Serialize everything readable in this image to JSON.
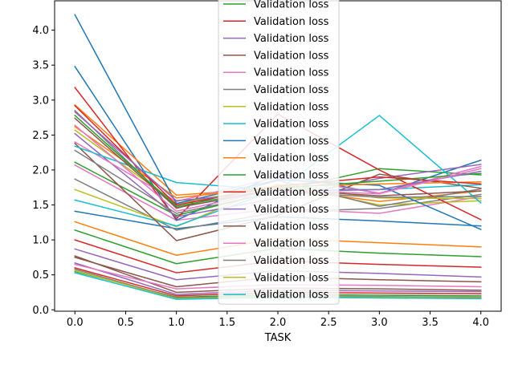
{
  "chart_data": {
    "type": "line",
    "title": "",
    "xlabel": "TASK",
    "ylabel": "",
    "x": [
      0,
      1,
      2,
      3,
      4
    ],
    "xlim": [
      -0.2,
      4.2
    ],
    "ylim": [
      -0.02,
      4.42
    ],
    "xticks": [
      "0.0",
      "0.5",
      "1.0",
      "1.5",
      "2.0",
      "2.5",
      "3.0",
      "3.5",
      "4.0"
    ],
    "yticks": [
      "0.0",
      "0.5",
      "1.0",
      "1.5",
      "2.0",
      "2.5",
      "3.0",
      "3.5",
      "4.0"
    ],
    "grid": false,
    "legend_position": "top-center",
    "series": [
      {
        "name": "Validation loss",
        "color": "#2ca02c",
        "values": [
          0.55,
          0.18,
          0.22,
          0.21,
          0.2
        ]
      },
      {
        "name": "Validation loss",
        "color": "#d62728",
        "values": [
          0.6,
          0.2,
          0.25,
          0.24,
          0.23
        ]
      },
      {
        "name": "Validation loss",
        "color": "#9467bd",
        "values": [
          0.67,
          0.22,
          0.28,
          0.27,
          0.26
        ]
      },
      {
        "name": "Validation loss",
        "color": "#8c564b",
        "values": [
          0.77,
          0.25,
          0.31,
          0.3,
          0.28
        ]
      },
      {
        "name": "Validation loss",
        "color": "#e377c2",
        "values": [
          0.65,
          0.3,
          0.36,
          0.35,
          0.33
        ]
      },
      {
        "name": "Validation loss",
        "color": "#7f7f7f",
        "values": [
          0.58,
          0.17,
          0.2,
          0.19,
          0.18
        ]
      },
      {
        "name": "Validation loss",
        "color": "#bcbd22",
        "values": [
          0.56,
          0.16,
          0.19,
          0.18,
          0.17
        ]
      },
      {
        "name": "Validation loss",
        "color": "#17becf",
        "values": [
          0.53,
          0.15,
          0.18,
          0.17,
          0.16
        ]
      },
      {
        "name": "Validation loss",
        "color": "#1f77b4",
        "values": [
          1.41,
          1.16,
          1.33,
          1.27,
          1.2
        ]
      },
      {
        "name": "Validation loss",
        "color": "#ff7f0e",
        "values": [
          1.26,
          0.78,
          1.02,
          0.96,
          0.9
        ]
      },
      {
        "name": "Validation loss",
        "color": "#2ca02c",
        "values": [
          1.14,
          0.66,
          0.88,
          0.81,
          0.76
        ]
      },
      {
        "name": "Validation loss",
        "color": "#d62728",
        "values": [
          1.0,
          0.53,
          0.7,
          0.65,
          0.61
        ]
      },
      {
        "name": "Validation loss",
        "color": "#9467bd",
        "values": [
          0.87,
          0.43,
          0.56,
          0.52,
          0.47
        ]
      },
      {
        "name": "Validation loss",
        "color": "#8c564b",
        "values": [
          0.75,
          0.33,
          0.47,
          0.43,
          0.4
        ]
      },
      {
        "name": "Validation loss",
        "color": "#e377c2",
        "values": [
          2.07,
          1.28,
          1.45,
          1.38,
          1.62
        ]
      },
      {
        "name": "Validation loss",
        "color": "#7f7f7f",
        "values": [
          1.87,
          1.14,
          1.4,
          1.45,
          1.65
        ]
      },
      {
        "name": "Validation loss",
        "color": "#bcbd22",
        "values": [
          1.72,
          1.19,
          1.8,
          1.5,
          1.56
        ]
      },
      {
        "name": "Validation loss",
        "color": "#17becf",
        "values": [
          1.57,
          1.2,
          1.72,
          1.72,
          1.79
        ]
      },
      {
        "name": "Validation loss",
        "color": "#1f77b4",
        "values": [
          3.48,
          1.28,
          1.95,
          1.66,
          2.14
        ]
      },
      {
        "name": "Validation loss",
        "color": "#ff7f0e",
        "values": [
          2.93,
          1.64,
          1.74,
          1.55,
          1.7
        ]
      },
      {
        "name": "Validation loss",
        "color": "#2ca02c",
        "values": [
          2.11,
          1.35,
          1.7,
          2.02,
          1.93
        ]
      },
      {
        "name": "Validation loss",
        "color": "#d62728",
        "values": [
          3.18,
          1.3,
          2.8,
          2.0,
          1.29
        ]
      },
      {
        "name": "Validation loss",
        "color": "#9467bd",
        "values": [
          2.52,
          1.33,
          1.6,
          1.88,
          2.08
        ]
      },
      {
        "name": "Validation loss",
        "color": "#8c564b",
        "values": [
          2.38,
          0.99,
          1.35,
          1.94,
          1.74
        ]
      },
      {
        "name": "Validation loss",
        "color": "#e377c2",
        "values": [
          2.4,
          1.55,
          1.9,
          1.67,
          2.05
        ]
      },
      {
        "name": "Validation loss",
        "color": "#7f7f7f",
        "values": [
          2.85,
          1.45,
          1.85,
          1.48,
          1.73
        ]
      },
      {
        "name": "Validation loss",
        "color": "#bcbd22",
        "values": [
          2.57,
          1.52,
          1.78,
          1.6,
          1.59
        ]
      },
      {
        "name": "Validation loss",
        "color": "#17becf",
        "values": [
          2.34,
          1.82,
          1.71,
          2.78,
          1.53
        ]
      },
      {
        "name": "Validation loss",
        "color": "#1f77b4",
        "values": [
          4.22,
          1.52,
          1.86,
          1.78,
          1.15
        ]
      },
      {
        "name": "Validation loss",
        "color": "#ff7f0e",
        "values": [
          2.62,
          1.6,
          1.76,
          1.8,
          1.83
        ]
      },
      {
        "name": "Validation loss",
        "color": "#2ca02c",
        "values": [
          2.78,
          1.48,
          1.74,
          1.84,
          1.95
        ]
      },
      {
        "name": "Validation loss",
        "color": "#d62728",
        "values": [
          2.92,
          1.5,
          1.77,
          1.9,
          1.8
        ]
      },
      {
        "name": "Validation loss",
        "color": "#9467bd",
        "values": [
          2.83,
          1.56,
          1.69,
          1.72,
          1.98
        ]
      },
      {
        "name": "Validation loss",
        "color": "#8c564b",
        "values": [
          2.74,
          1.46,
          1.72,
          1.63,
          1.7
        ]
      },
      {
        "name": "Validation loss",
        "color": "#e377c2",
        "values": [
          2.64,
          1.41,
          1.72,
          1.66,
          2.02
        ]
      },
      {
        "name": "Validation loss",
        "color": "#7f7f7f",
        "values": [
          2.28,
          1.38,
          1.69,
          1.61,
          1.62
        ]
      }
    ],
    "legend": [
      {
        "label": "Validation loss",
        "color": "#2ca02c"
      },
      {
        "label": "Validation loss",
        "color": "#d62728"
      },
      {
        "label": "Validation loss",
        "color": "#9467bd"
      },
      {
        "label": "Validation loss",
        "color": "#8c564b"
      },
      {
        "label": "Validation loss",
        "color": "#e377c2"
      },
      {
        "label": "Validation loss",
        "color": "#7f7f7f"
      },
      {
        "label": "Validation loss",
        "color": "#bcbd22"
      },
      {
        "label": "Validation loss",
        "color": "#17becf"
      },
      {
        "label": "Validation loss",
        "color": "#1f77b4"
      },
      {
        "label": "Validation loss",
        "color": "#ff7f0e"
      },
      {
        "label": "Validation loss",
        "color": "#2ca02c"
      },
      {
        "label": "Validation loss",
        "color": "#d62728"
      },
      {
        "label": "Validation loss",
        "color": "#9467bd"
      },
      {
        "label": "Validation loss",
        "color": "#8c564b"
      },
      {
        "label": "Validation loss",
        "color": "#e377c2"
      },
      {
        "label": "Validation loss",
        "color": "#7f7f7f"
      },
      {
        "label": "Validation loss",
        "color": "#bcbd22"
      },
      {
        "label": "Validation loss",
        "color": "#17becf"
      }
    ]
  }
}
